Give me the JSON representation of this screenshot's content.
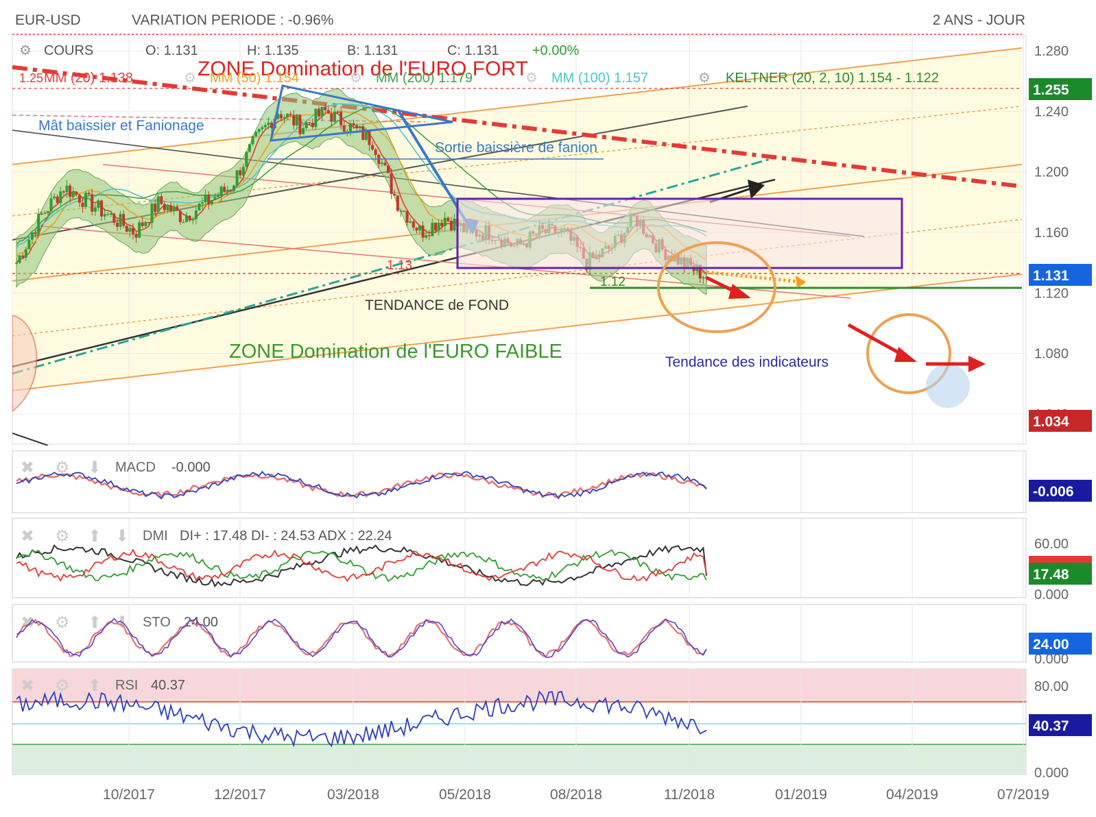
{
  "header": {
    "symbol": "EUR-USD",
    "variation": "VARIATION PERIODE : -0.96%",
    "period": "2 ANS - JOUR"
  },
  "legend": {
    "cours": "COURS",
    "open": "O: 1.131",
    "high": "H: 1.135",
    "low": "B: 1.131",
    "close": "C: 1.131",
    "change": "+0.00%",
    "mm20": "MM (20) 1.138",
    "mm50": "MM (50) 1.154",
    "mm200": "MM (200) 1.179",
    "mm100": "MM (100) 1.157",
    "keltner": "KELTNER (20, 2, 10)  1.154 - 1.122"
  },
  "annotations": {
    "zone_fort": "ZONE Domination de l'EURO FORT",
    "zone_faible": "ZONE Domination de l'EURO FAIBLE",
    "mat": "Mât baissier et Fanionage",
    "sortie": "Sortie baissière de fanion",
    "tendance_fond": "TENDANCE de FOND",
    "tendance_ind": "Tendance des indicateurs",
    "lvl_113": "1.13",
    "lvl_112": "1.12",
    "lvl_125": "1.25"
  },
  "panels": {
    "macd": {
      "label": "MACD",
      "value": "-0.000",
      "badge": "-0.006"
    },
    "dmi": {
      "label": "DMI",
      "value": "DI+ : 17.48 DI- : 24.53 ADX : 22.24",
      "badge": "17.48"
    },
    "sto": {
      "label": "STO",
      "value": "24.00",
      "badge": "24.00"
    },
    "rsi": {
      "label": "RSI",
      "value": "40.37",
      "badge": "40.37"
    }
  },
  "price_badges": {
    "top": "1.255",
    "current": "1.131",
    "bottom": "1.034"
  },
  "axes": {
    "price_ticks": [
      "1.280",
      "1.240",
      "1.200",
      "1.160",
      "1.120",
      "1.080",
      "1.040"
    ],
    "dmi_ticks": [
      "60.00",
      "0.000"
    ],
    "sto_ticks": [
      "0.000"
    ],
    "rsi_ticks": [
      "80.00",
      "0.000"
    ],
    "x_ticks": [
      "10/2017",
      "12/2017",
      "03/2018",
      "05/2018",
      "08/2018",
      "11/2018",
      "01/2019",
      "04/2019",
      "07/2019"
    ]
  },
  "colors": {
    "up": "#2e9e2e",
    "down": "#c0392b",
    "keltner_fill": "#8fc57a",
    "mm20": "#e53935",
    "mm50": "#f0a020",
    "mm200": "#43a047",
    "mm100": "#4fc3c8",
    "zone_box": "#6a1fb8",
    "badge_green": "#1a8a2a",
    "badge_blue": "#1565e0",
    "badge_red": "#c62828",
    "badge_navy": "#1a1aa0"
  },
  "chart_data": {
    "type": "candlestick",
    "title": "EUR-USD",
    "x_labels": [
      "10/2017",
      "12/2017",
      "03/2018",
      "05/2018",
      "08/2018",
      "11/2018"
    ],
    "x_ticks": [
      "10/2017",
      "12/2017",
      "03/2018",
      "05/2018",
      "08/2018",
      "11/2018",
      "01/2019",
      "04/2019",
      "07/2019"
    ],
    "ylim": [
      1.02,
      1.29
    ],
    "close_path": [
      1.14,
      1.17,
      1.19,
      1.18,
      1.17,
      1.16,
      1.18,
      1.17,
      1.18,
      1.19,
      1.22,
      1.24,
      1.23,
      1.24,
      1.23,
      1.22,
      1.18,
      1.16,
      1.17,
      1.16,
      1.16,
      1.15,
      1.16,
      1.16,
      1.14,
      1.15,
      1.17,
      1.15,
      1.14,
      1.131
    ],
    "series": [
      {
        "name": "MM (20)",
        "last": 1.138
      },
      {
        "name": "MM (50)",
        "last": 1.154
      },
      {
        "name": "MM (200)",
        "last": 1.179
      },
      {
        "name": "MM (100)",
        "last": 1.157
      },
      {
        "name": "KELTNER (20, 2, 10)",
        "upper": 1.154,
        "lower": 1.122
      }
    ],
    "levels": {
      "support": 1.12,
      "resistance": 1.13,
      "current": 1.131
    },
    "indicators": {
      "macd": -0.006,
      "di_plus": 17.48,
      "di_minus": 24.53,
      "adx": 22.24,
      "sto": 24.0,
      "rsi": 40.37
    }
  }
}
